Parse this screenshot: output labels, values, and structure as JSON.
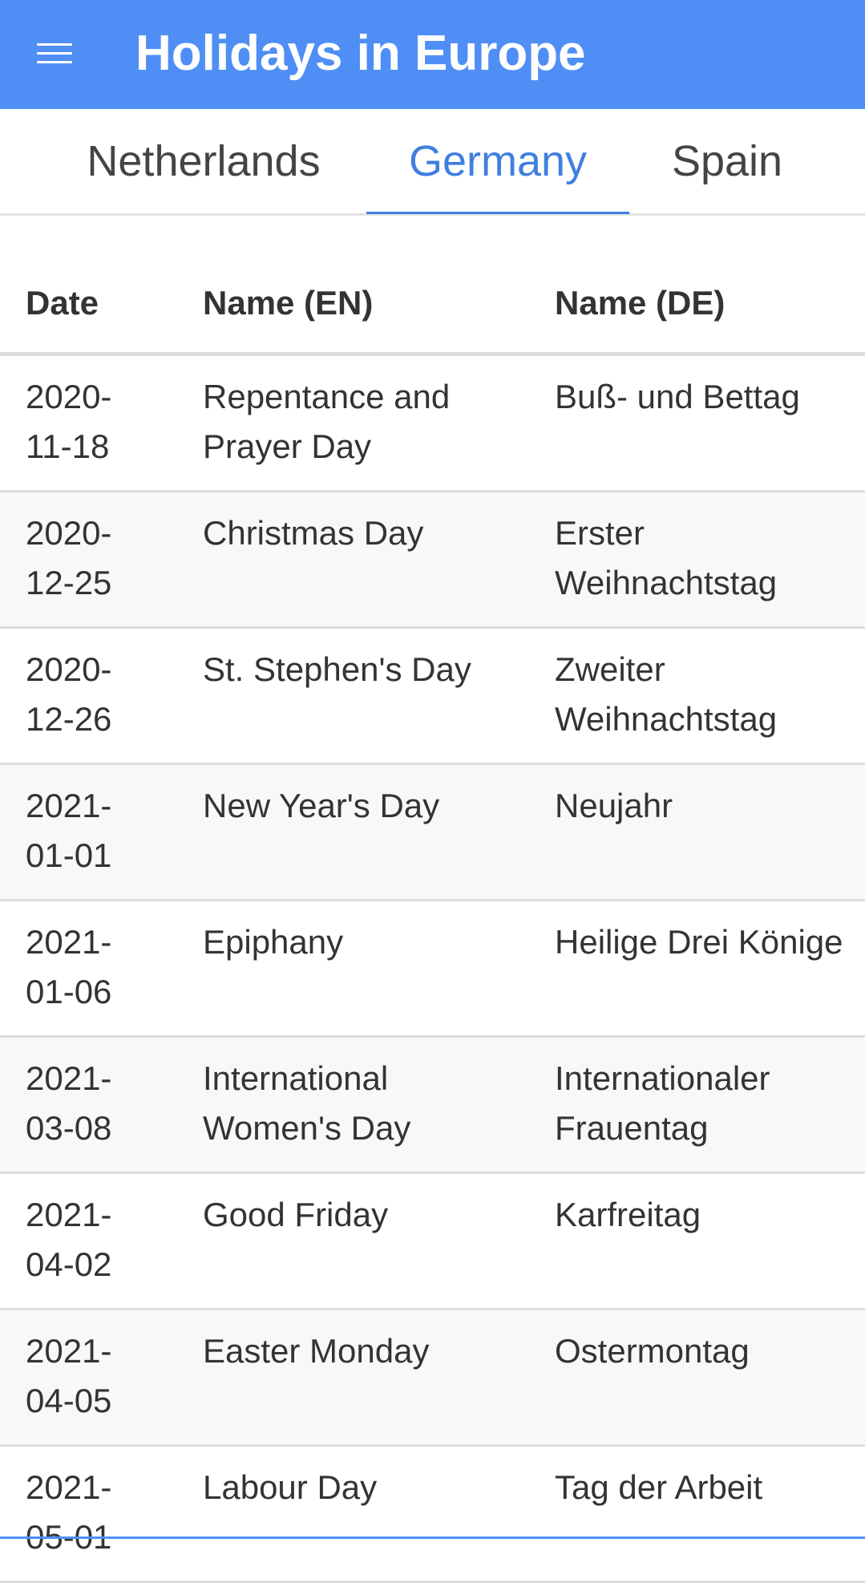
{
  "app_bar": {
    "title": "Holidays in Europe",
    "menu_icon": "menu-icon",
    "background_color": "#4f8ff5"
  },
  "tabs": [
    {
      "label": "Netherlands",
      "selected": false
    },
    {
      "label": "Germany",
      "selected": true
    },
    {
      "label": "Spain",
      "selected": false
    }
  ],
  "accent_color": "#3f7fdf",
  "table": {
    "headers": {
      "date": "Date",
      "name_en": "Name (EN)",
      "name_de": "Name (DE)"
    },
    "rows": [
      {
        "date": "2020-\n11-18",
        "name_en": "Repentance and Prayer Day",
        "name_de": "Buß- und Bettag"
      },
      {
        "date": "2020-\n12-25",
        "name_en": "Christmas Day",
        "name_de": "Erster Weihnachtstag"
      },
      {
        "date": "2020-\n12-26",
        "name_en": "St. Stephen's Day",
        "name_de": "Zweiter Weihnachtstag"
      },
      {
        "date": "2021-\n01-01",
        "name_en": "New Year's Day",
        "name_de": "Neujahr"
      },
      {
        "date": "2021-\n01-06",
        "name_en": "Epiphany",
        "name_de": "Heilige Drei Könige"
      },
      {
        "date": "2021-\n03-08",
        "name_en": "International Women's Day",
        "name_de": "Internationaler Frauentag"
      },
      {
        "date": "2021-\n04-02",
        "name_en": "Good Friday",
        "name_de": "Karfreitag"
      },
      {
        "date": "2021-\n04-05",
        "name_en": "Easter Monday",
        "name_de": "Ostermontag"
      },
      {
        "date": "2021-\n05-01",
        "name_en": "Labour Day",
        "name_de": "Tag der Arbeit"
      }
    ]
  }
}
